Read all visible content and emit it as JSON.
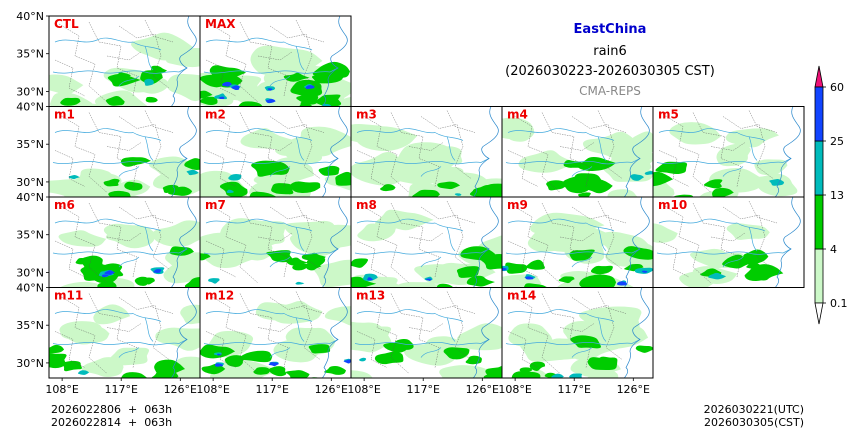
{
  "header": {
    "title": "EastChina",
    "variable": "rain6",
    "period": "(2026030223-2026030305 CST)",
    "model": "CMA-REPS"
  },
  "footer": {
    "init_times": [
      "2026022806  +  063h",
      "2026022814  +  063h"
    ],
    "valid_times": [
      "2026030221(UTC)",
      "2026030305(CST)"
    ]
  },
  "colors": {
    "level_colors": [
      "#ccf8c8",
      "#00cc00",
      "#00bbbb",
      "#1144ff",
      "#ee1177"
    ],
    "panel_label": "#ee0000",
    "title": "#0000cc",
    "river": "#44aadd"
  },
  "chart_data": {
    "type": "heatmap",
    "title": "EastChina",
    "subtitle": "rain6 (2026030223-2026030305 CST)",
    "source": "CMA-REPS",
    "x_ticks": [
      "108°E",
      "117°E",
      "126°E"
    ],
    "y_ticks": [
      "40°N",
      "35°N",
      "30°N"
    ],
    "xlim": [
      106,
      129
    ],
    "ylim": [
      28,
      40
    ],
    "colorbar": {
      "levels": [
        "0.1",
        "4",
        "13",
        "25",
        "60"
      ],
      "extend": "both"
    },
    "panels": [
      {
        "label": "CTL",
        "row": 0,
        "col": 0,
        "coverage": 0.35,
        "intensity": 1.2
      },
      {
        "label": "MAX",
        "row": 0,
        "col": 1,
        "coverage": 0.7,
        "intensity": 3.2
      },
      {
        "label": "m1",
        "row": 1,
        "col": 0,
        "coverage": 0.3,
        "intensity": 1.4
      },
      {
        "label": "m2",
        "row": 1,
        "col": 1,
        "coverage": 0.45,
        "intensity": 1.5
      },
      {
        "label": "m3",
        "row": 1,
        "col": 2,
        "coverage": 0.55,
        "intensity": 1.0
      },
      {
        "label": "m4",
        "row": 1,
        "col": 3,
        "coverage": 0.35,
        "intensity": 1.3
      },
      {
        "label": "m5",
        "row": 1,
        "col": 4,
        "coverage": 0.3,
        "intensity": 1.1
      },
      {
        "label": "m6",
        "row": 2,
        "col": 0,
        "coverage": 0.35,
        "intensity": 1.9
      },
      {
        "label": "m7",
        "row": 2,
        "col": 1,
        "coverage": 0.6,
        "intensity": 1.3
      },
      {
        "label": "m8",
        "row": 2,
        "col": 2,
        "coverage": 0.45,
        "intensity": 1.6
      },
      {
        "label": "m9",
        "row": 2,
        "col": 3,
        "coverage": 0.55,
        "intensity": 2.1
      },
      {
        "label": "m10",
        "row": 2,
        "col": 4,
        "coverage": 0.15,
        "intensity": 1.0
      },
      {
        "label": "m11",
        "row": 3,
        "col": 0,
        "coverage": 0.3,
        "intensity": 1.1
      },
      {
        "label": "m12",
        "row": 3,
        "col": 1,
        "coverage": 0.4,
        "intensity": 2.0
      },
      {
        "label": "m13",
        "row": 3,
        "col": 2,
        "coverage": 0.4,
        "intensity": 1.2
      },
      {
        "label": "m14",
        "row": 3,
        "col": 3,
        "coverage": 0.55,
        "intensity": 1.4
      }
    ]
  }
}
